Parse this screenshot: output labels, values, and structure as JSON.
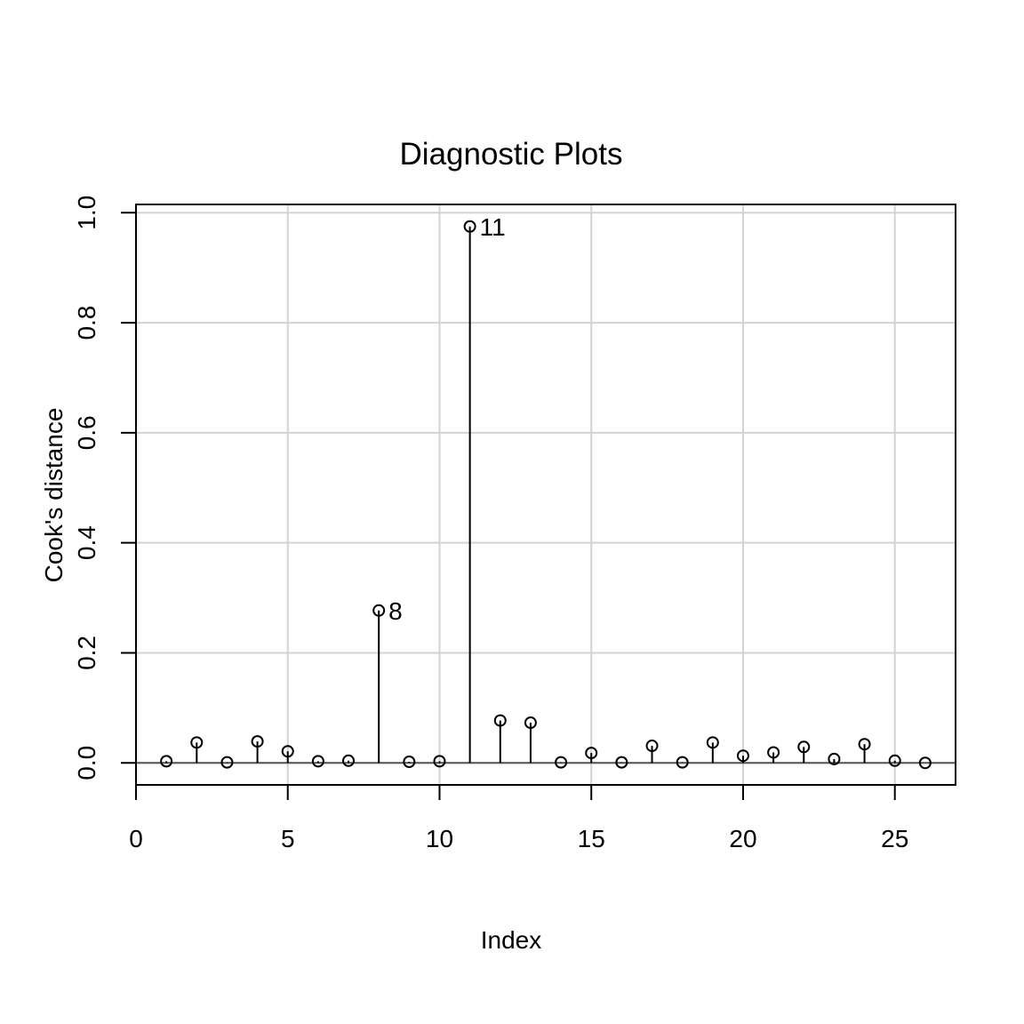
{
  "chart_data": {
    "type": "scatter",
    "plot_style": "stem",
    "title": "Diagnostic Plots",
    "xlabel": "Index",
    "ylabel": "Cook's distance",
    "xlim": [
      0,
      27
    ],
    "ylim": [
      -0.04,
      1.015
    ],
    "xticks": [
      0,
      5,
      10,
      15,
      20,
      25
    ],
    "yticks": [
      0.0,
      0.2,
      0.4,
      0.6,
      0.8,
      1.0
    ],
    "ytick_labels": [
      "0.0",
      "0.2",
      "0.4",
      "0.6",
      "0.8",
      "1.0"
    ],
    "grid": true,
    "baseline": 0,
    "x": [
      1,
      2,
      3,
      4,
      5,
      6,
      7,
      8,
      9,
      10,
      11,
      12,
      13,
      14,
      15,
      16,
      17,
      18,
      19,
      20,
      21,
      22,
      23,
      24,
      25,
      26
    ],
    "values": [
      0.003,
      0.037,
      0.001,
      0.039,
      0.021,
      0.003,
      0.004,
      0.277,
      0.002,
      0.003,
      0.975,
      0.077,
      0.073,
      0.001,
      0.018,
      0.001,
      0.031,
      0.001,
      0.037,
      0.013,
      0.019,
      0.029,
      0.007,
      0.034,
      0.004,
      0.0
    ],
    "annotations": [
      {
        "x": 8,
        "y": 0.277,
        "text": "8"
      },
      {
        "x": 11,
        "y": 0.975,
        "text": "11"
      }
    ]
  }
}
